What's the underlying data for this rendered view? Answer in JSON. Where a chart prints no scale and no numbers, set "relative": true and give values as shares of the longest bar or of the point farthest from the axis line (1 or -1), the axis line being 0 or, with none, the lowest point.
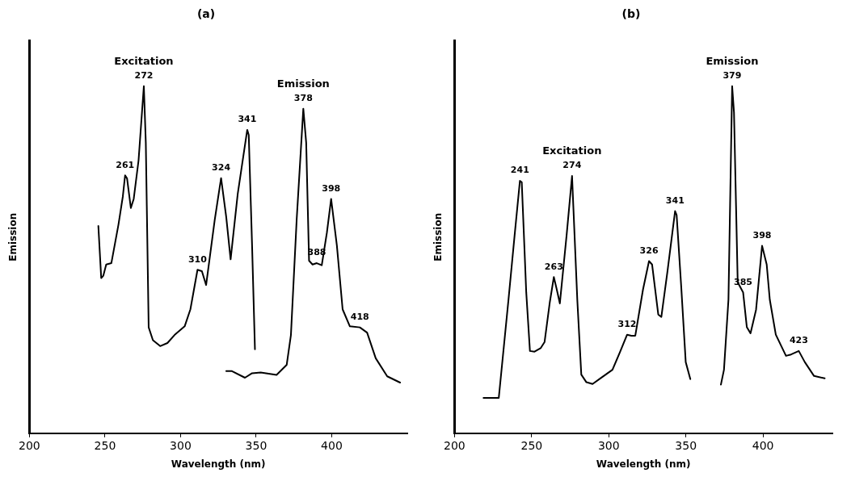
{
  "chart_data": [
    {
      "type": "line",
      "title": "(a)",
      "xlabel": "Wavelength (nm)",
      "ylabel": "Emission",
      "relative": true,
      "xlim": [
        200,
        450
      ],
      "xticks": [
        200,
        250,
        300,
        350,
        400
      ],
      "tick_labels": "x",
      "grid": false,
      "legend": false,
      "marker": "none",
      "line_style": "solid",
      "series": [
        {
          "name": "Excitation",
          "color": "#000000",
          "x": [
            245.6,
            247.5,
            248.9,
            250.8,
            254.2,
            258.9,
            261.8,
            263.3,
            264.6,
            267.1,
            269.0,
            272.2,
            275.7,
            277.0,
            278.9,
            281.7,
            286.5,
            291.3,
            296.0,
            302.7,
            306.5,
            311.2,
            314.1,
            316.9,
            322.6,
            326.8,
            330.2,
            333.1,
            337.8,
            344.1,
            345.1,
            347.3,
            349.2
          ],
          "values": [
            0.597,
            0.447,
            0.454,
            0.486,
            0.49,
            0.601,
            0.682,
            0.743,
            0.734,
            0.649,
            0.675,
            0.786,
            1.0,
            0.837,
            0.305,
            0.268,
            0.251,
            0.26,
            0.283,
            0.308,
            0.357,
            0.471,
            0.467,
            0.427,
            0.615,
            0.735,
            0.623,
            0.501,
            0.689,
            0.874,
            0.859,
            0.541,
            0.242
          ]
        },
        {
          "name": "Emission",
          "color": "#000000",
          "x": [
            330.2,
            334.0,
            342.6,
            347.3,
            353.0,
            363.5,
            370.2,
            373.0,
            376.8,
            381.2,
            383.1,
            385.0,
            387.3,
            390.1,
            393.4,
            396.8,
            399.6,
            403.4,
            407.2,
            412.0,
            418.6,
            423.4,
            429.1,
            436.7,
            445.2
          ],
          "values": [
            0.179,
            0.179,
            0.16,
            0.173,
            0.175,
            0.168,
            0.197,
            0.283,
            0.615,
            0.935,
            0.837,
            0.497,
            0.486,
            0.49,
            0.484,
            0.578,
            0.675,
            0.541,
            0.357,
            0.308,
            0.305,
            0.29,
            0.216,
            0.164,
            0.146
          ]
        }
      ],
      "annotations": [
        {
          "text": "261",
          "x": 263.3,
          "y": 0.743
        },
        {
          "text": "272",
          "x": 275.7,
          "y": 1.0
        },
        {
          "text": "310",
          "x": 311.2,
          "y": 0.471
        },
        {
          "text": "324",
          "x": 326.8,
          "y": 0.735
        },
        {
          "text": "341",
          "x": 344.1,
          "y": 0.874
        },
        {
          "text": "378",
          "x": 381.2,
          "y": 0.935
        },
        {
          "text": "388",
          "x": 390.1,
          "y": 0.49
        },
        {
          "text": "398",
          "x": 399.6,
          "y": 0.675
        },
        {
          "text": "418",
          "x": 418.6,
          "y": 0.305
        }
      ]
    },
    {
      "type": "line",
      "title": "(b)",
      "xlabel": "Wavelength (nm)",
      "ylabel": "Emission",
      "relative": true,
      "xlim": [
        200,
        445
      ],
      "xticks": [
        200,
        250,
        300,
        350,
        400
      ],
      "tick_labels": "x",
      "grid": false,
      "legend": false,
      "marker": "none",
      "line_style": "solid",
      "series": [
        {
          "name": "Excitation",
          "color": "#000000",
          "x": [
            218.8,
            228.7,
            235.0,
            239.0,
            242.4,
            243.6,
            246.5,
            248.9,
            251.9,
            255.8,
            258.4,
            261.8,
            264.4,
            266.3,
            268.3,
            272.7,
            276.2,
            279.6,
            282.2,
            285.5,
            289.5,
            294.5,
            302.4,
            307.3,
            311.9,
            314.7,
            317.2,
            322.2,
            326.1,
            328.1,
            332.1,
            334.1,
            338.0,
            343.0,
            344.0,
            347.0,
            349.9,
            352.9
          ],
          "values": [
            0.102,
            0.102,
            0.385,
            0.572,
            0.727,
            0.723,
            0.406,
            0.237,
            0.235,
            0.245,
            0.263,
            0.378,
            0.45,
            0.414,
            0.374,
            0.572,
            0.741,
            0.385,
            0.169,
            0.147,
            0.142,
            0.158,
            0.183,
            0.234,
            0.284,
            0.281,
            0.281,
            0.414,
            0.496,
            0.486,
            0.342,
            0.335,
            0.464,
            0.64,
            0.629,
            0.421,
            0.205,
            0.156
          ]
        },
        {
          "name": "Emission",
          "color": "#000000",
          "x": [
            372.7,
            374.7,
            377.6,
            380.0,
            381.2,
            383.6,
            387.1,
            389.5,
            391.9,
            395.5,
            399.4,
            402.4,
            404.4,
            408.3,
            414.9,
            418.2,
            423.2,
            427.1,
            433.1,
            440.0
          ],
          "values": [
            0.14,
            0.183,
            0.385,
            1.0,
            0.924,
            0.435,
            0.406,
            0.306,
            0.288,
            0.356,
            0.54,
            0.486,
            0.385,
            0.284,
            0.223,
            0.227,
            0.237,
            0.205,
            0.165,
            0.158
          ]
        }
      ],
      "annotations": [
        {
          "text": "241",
          "x": 242.4,
          "y": 0.727
        },
        {
          "text": "263",
          "x": 264.4,
          "y": 0.45
        },
        {
          "text": "274",
          "x": 276.2,
          "y": 0.741
        },
        {
          "text": "312",
          "x": 311.9,
          "y": 0.284
        },
        {
          "text": "326",
          "x": 326.1,
          "y": 0.496
        },
        {
          "text": "341",
          "x": 343.0,
          "y": 0.64
        },
        {
          "text": "379",
          "x": 380.0,
          "y": 1.0
        },
        {
          "text": "385",
          "x": 387.1,
          "y": 0.406
        },
        {
          "text": "398",
          "x": 399.4,
          "y": 0.54
        },
        {
          "text": "423",
          "x": 423.2,
          "y": 0.237
        }
      ]
    }
  ]
}
